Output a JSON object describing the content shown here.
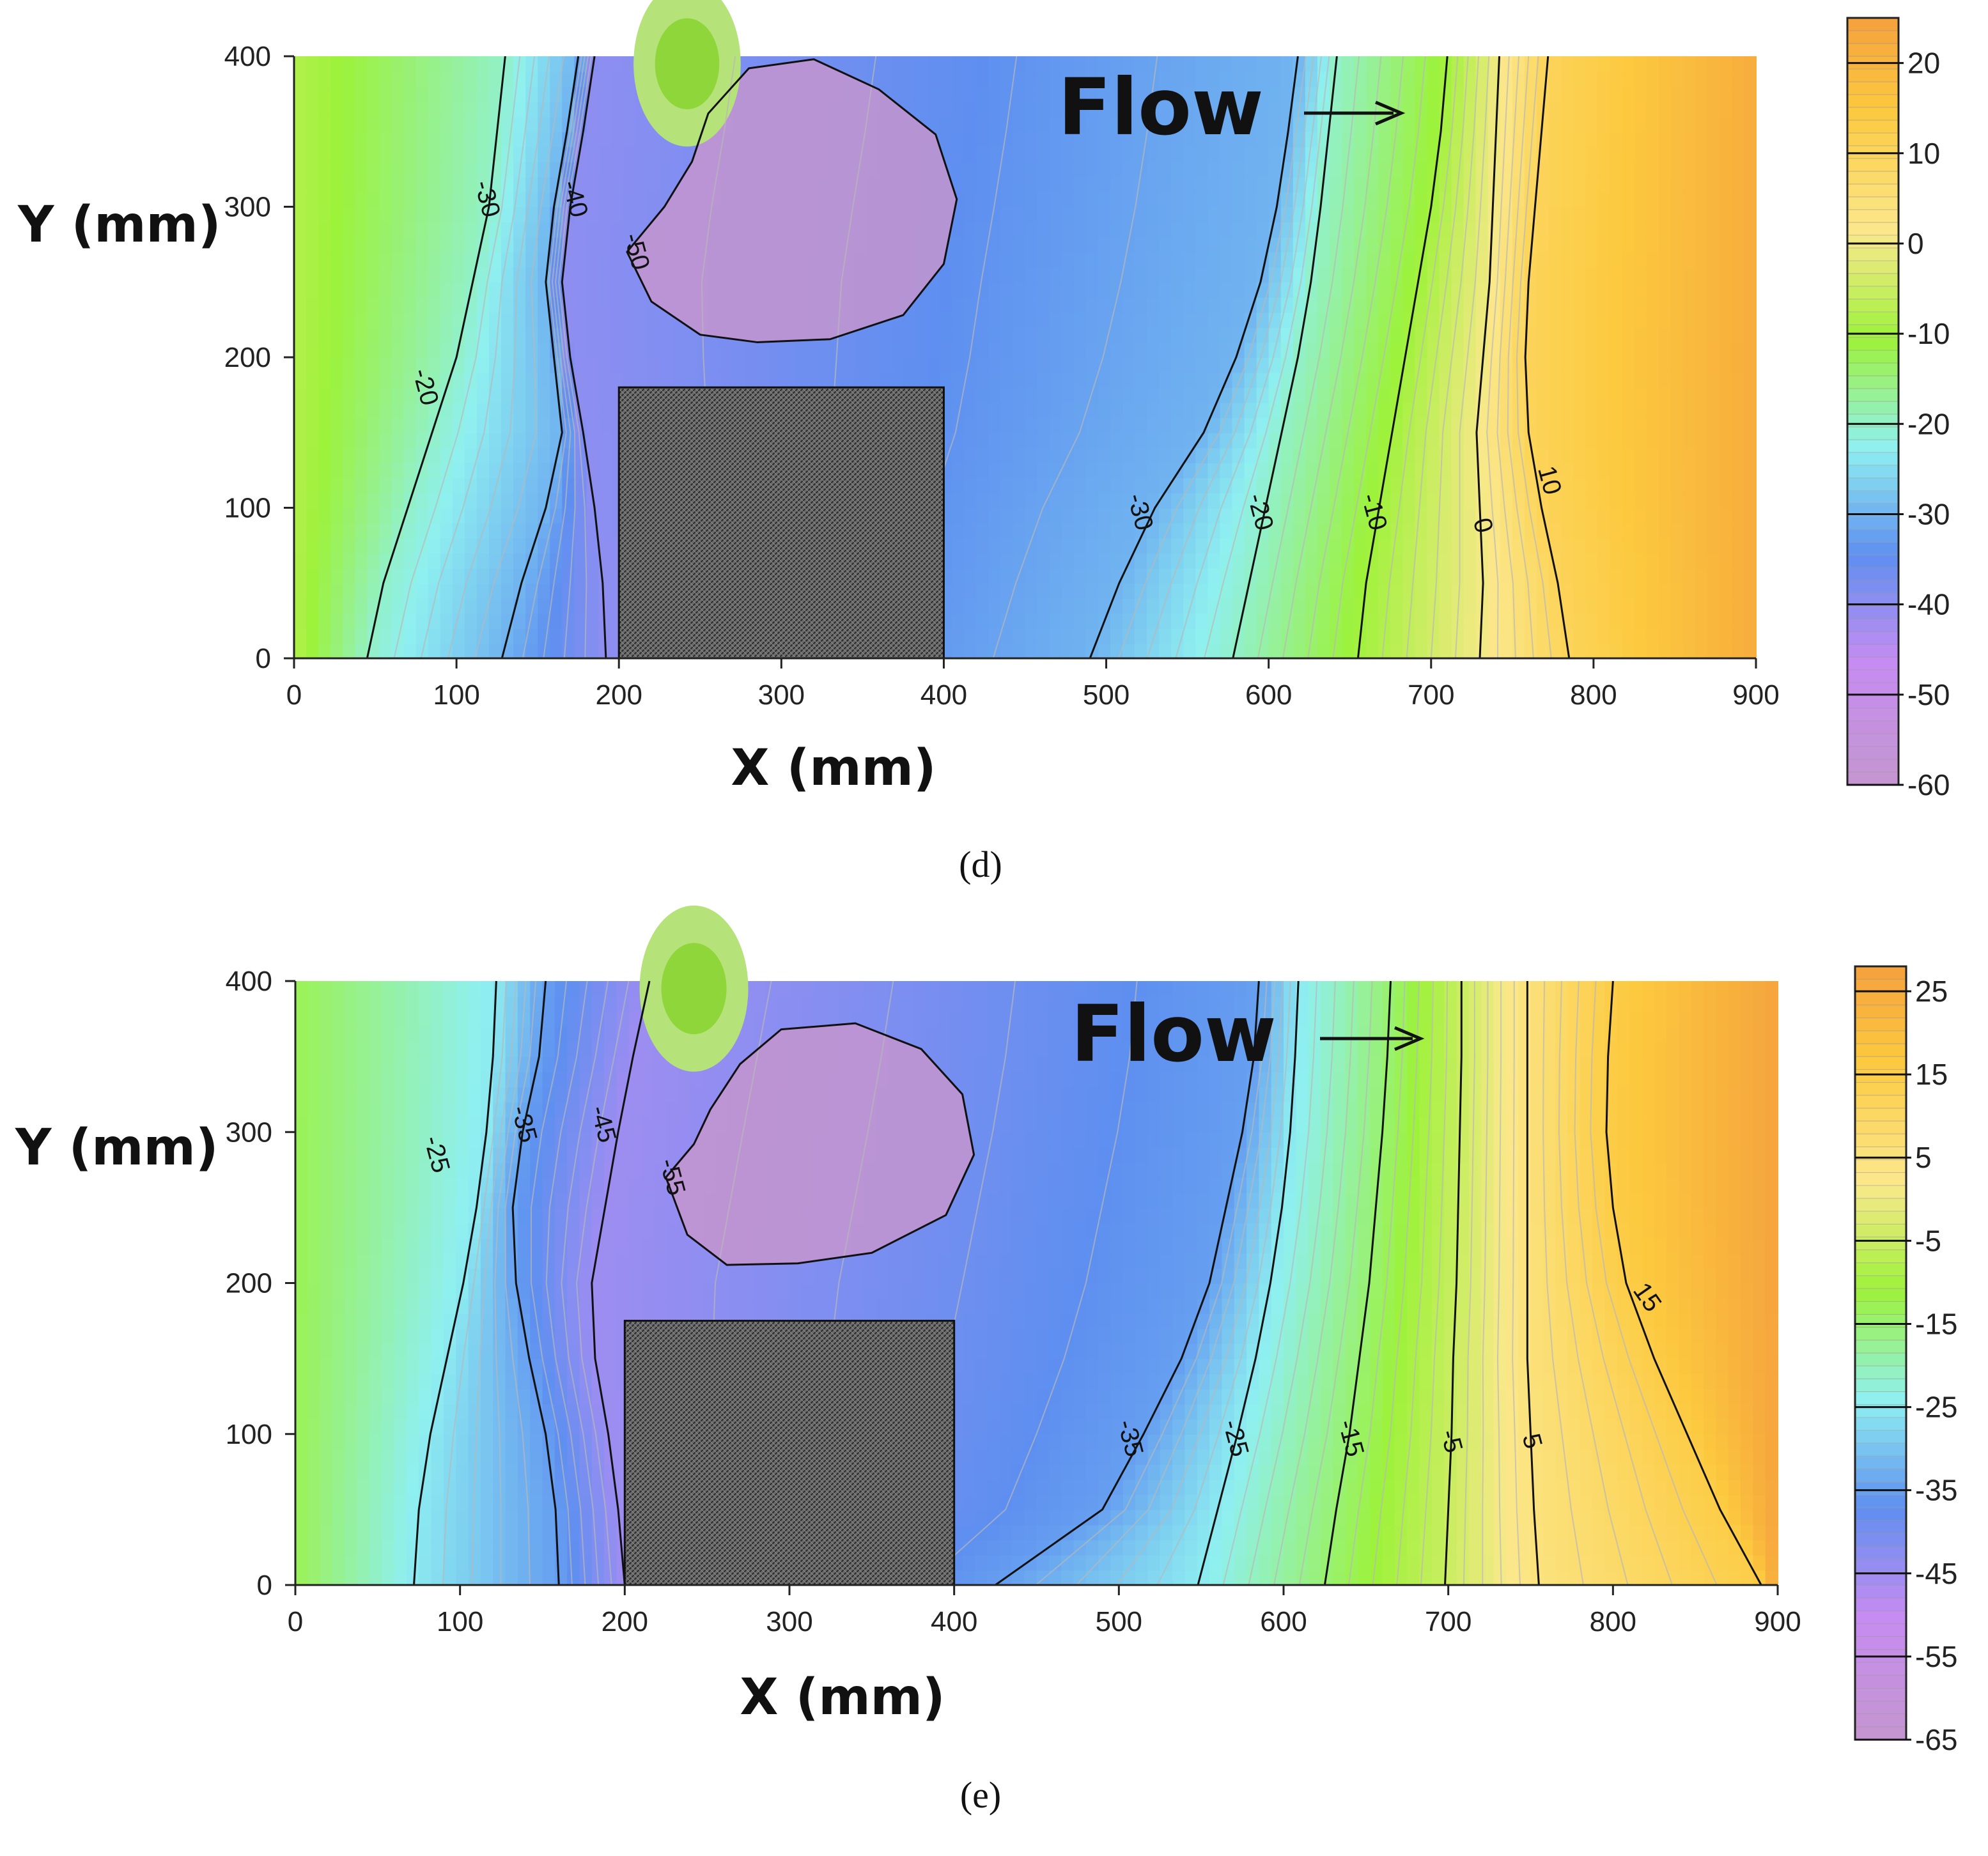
{
  "chart_data": [
    {
      "type": "contour",
      "panel_label": "d",
      "xlabel": "X (mm)",
      "ylabel": "Y (mm)",
      "xlim": [
        0,
        900
      ],
      "ylim": [
        0,
        400
      ],
      "x_ticks": [
        "0",
        "100",
        "200",
        "300",
        "400",
        "500",
        "600",
        "700",
        "800",
        "900"
      ],
      "y_ticks": [
        "0",
        "100",
        "200",
        "300",
        "400"
      ],
      "flow_annotation": "Flow",
      "obstacle": {
        "x": [
          200,
          400
        ],
        "y": [
          0,
          180
        ]
      },
      "contour_levels": [
        {
          "value": -20,
          "label": "-20",
          "x": [
            45,
            55,
            70,
            85,
            100,
            110,
            120,
            125,
            130
          ],
          "y": [
            0,
            50,
            100,
            150,
            200,
            250,
            300,
            350,
            400
          ],
          "label_at": [
            80,
            180
          ]
        },
        {
          "value": -30,
          "label": "-30",
          "x": [
            128,
            140,
            155,
            165,
            160,
            155,
            160,
            168,
            175
          ],
          "y": [
            0,
            50,
            100,
            150,
            200,
            250,
            300,
            350,
            400
          ],
          "label_at": [
            118,
            305
          ]
        },
        {
          "value": -40,
          "label": "-40",
          "x": [
            192,
            190,
            185,
            178,
            170,
            165,
            170,
            178,
            185
          ],
          "y": [
            0,
            50,
            100,
            150,
            200,
            250,
            300,
            350,
            400
          ],
          "label_at": [
            172,
            305
          ]
        },
        {
          "value": -50,
          "label": "-50",
          "x": [
            205,
            220,
            250,
            285,
            330,
            375,
            400,
            408,
            395,
            360,
            320,
            280,
            255,
            245,
            228
          ],
          "y": [
            270,
            237,
            215,
            210,
            212,
            228,
            262,
            305,
            348,
            378,
            398,
            392,
            362,
            330,
            300
          ],
          "label_at": [
            210,
            270
          ]
        },
        {
          "value": -30,
          "label": "-30",
          "x": [
            490,
            508,
            530,
            560,
            580,
            595,
            605,
            612,
            618
          ],
          "y": [
            0,
            50,
            100,
            150,
            200,
            250,
            300,
            350,
            400
          ],
          "label_at": [
            520,
            97
          ]
        },
        {
          "value": -20,
          "label": "-20",
          "x": [
            578,
            588,
            598,
            608,
            618,
            626,
            632,
            637,
            642
          ],
          "y": [
            0,
            50,
            100,
            150,
            200,
            250,
            300,
            350,
            400
          ],
          "label_at": [
            594,
            97
          ]
        },
        {
          "value": -10,
          "label": "-10",
          "x": [
            655,
            660,
            668,
            676,
            684,
            692,
            700,
            706,
            710
          ],
          "y": [
            0,
            50,
            100,
            150,
            200,
            250,
            300,
            350,
            400
          ],
          "label_at": [
            664,
            97
          ]
        },
        {
          "value": 0,
          "label": "0",
          "x": [
            730,
            732,
            730,
            728,
            732,
            736,
            738,
            740,
            742
          ],
          "y": [
            0,
            50,
            100,
            150,
            200,
            250,
            300,
            350,
            400
          ],
          "label_at": [
            731,
            88
          ]
        },
        {
          "value": 10,
          "label": "10",
          "x": [
            785,
            778,
            768,
            760,
            758,
            760,
            764,
            768,
            772
          ],
          "y": [
            0,
            50,
            100,
            150,
            200,
            250,
            300,
            350,
            400
          ],
          "label_at": [
            772,
            118
          ]
        }
      ],
      "colorbar": {
        "vmin": -60,
        "vmax": 25,
        "tick_values": [
          20,
          10,
          0,
          -10,
          -20,
          -30,
          -40,
          -50,
          -60
        ],
        "tick_labels": [
          "20",
          "10",
          "0",
          "-10",
          "-20",
          "-30",
          "-40",
          "-50",
          "-60"
        ]
      }
    },
    {
      "type": "contour",
      "panel_label": "e",
      "xlabel": "X (mm)",
      "ylabel": "Y (mm)",
      "xlim": [
        0,
        900
      ],
      "ylim": [
        0,
        400
      ],
      "x_ticks": [
        "0",
        "100",
        "200",
        "300",
        "400",
        "500",
        "600",
        "700",
        "800",
        "900"
      ],
      "y_ticks": [
        "0",
        "100",
        "200",
        "300",
        "400"
      ],
      "flow_annotation": "Flow",
      "obstacle": {
        "x": [
          200,
          400
        ],
        "y": [
          0,
          175
        ]
      },
      "contour_levels": [
        {
          "value": -25,
          "label": "-25",
          "x": [
            72,
            75,
            82,
            92,
            102,
            110,
            116,
            120,
            122
          ],
          "y": [
            0,
            50,
            100,
            150,
            200,
            250,
            300,
            350,
            400
          ],
          "label_at": [
            85,
            285
          ]
        },
        {
          "value": -35,
          "label": "-35",
          "x": [
            160,
            158,
            152,
            142,
            134,
            132,
            138,
            148,
            152
          ],
          "y": [
            0,
            50,
            100,
            150,
            200,
            250,
            300,
            350,
            400
          ],
          "label_at": [
            138,
            305
          ]
        },
        {
          "value": -45,
          "label": "-45",
          "x": [
            200,
            196,
            190,
            182,
            180,
            188,
            196,
            205,
            215
          ],
          "y": [
            0,
            50,
            100,
            150,
            200,
            250,
            300,
            350,
            400
          ],
          "label_at": [
            186,
            305
          ]
        },
        {
          "value": -55,
          "label": "-55",
          "x": [
            225,
            238,
            262,
            305,
            350,
            395,
            412,
            405,
            380,
            340,
            295,
            270,
            252,
            242
          ],
          "y": [
            270,
            232,
            212,
            213,
            220,
            245,
            285,
            325,
            355,
            372,
            368,
            345,
            315,
            292
          ],
          "label_at": [
            228,
            270
          ]
        },
        {
          "value": -35,
          "label": "-35",
          "x": [
            425,
            490,
            515,
            538,
            555,
            565,
            575,
            582,
            585
          ],
          "y": [
            0,
            50,
            100,
            150,
            200,
            250,
            300,
            350,
            400
          ],
          "label_at": [
            506,
            97
          ]
        },
        {
          "value": -25,
          "label": "-25",
          "x": [
            548,
            560,
            572,
            583,
            592,
            599,
            604,
            607,
            609
          ],
          "y": [
            0,
            50,
            100,
            150,
            200,
            250,
            300,
            350,
            400
          ],
          "label_at": [
            570,
            97
          ]
        },
        {
          "value": -15,
          "label": "-15",
          "x": [
            625,
            632,
            640,
            646,
            652,
            656,
            660,
            663,
            665
          ],
          "y": [
            0,
            50,
            100,
            150,
            200,
            250,
            300,
            350,
            400
          ],
          "label_at": [
            640,
            97
          ]
        },
        {
          "value": -5,
          "label": "-5",
          "x": [
            698,
            700,
            702,
            703,
            705,
            706,
            707,
            708,
            708
          ],
          "y": [
            0,
            50,
            100,
            150,
            200,
            250,
            300,
            350,
            400
          ],
          "label_at": [
            701,
            95
          ]
        },
        {
          "value": 5,
          "label": "5",
          "x": [
            755,
            752,
            750,
            748,
            748,
            748,
            748,
            748,
            748
          ],
          "y": [
            0,
            50,
            100,
            150,
            200,
            250,
            300,
            350,
            400
          ],
          "label_at": [
            750,
            95
          ]
        },
        {
          "value": 15,
          "label": "15",
          "x": [
            890,
            865,
            845,
            825,
            808,
            800,
            796,
            797,
            800
          ],
          "y": [
            0,
            50,
            100,
            150,
            200,
            250,
            300,
            350,
            400
          ],
          "label_at": [
            820,
            190
          ]
        }
      ],
      "colorbar": {
        "vmin": -65,
        "vmax": 28,
        "tick_values": [
          25,
          15,
          5,
          -5,
          -15,
          -25,
          -35,
          -45,
          -55,
          -65
        ],
        "tick_labels": [
          "25",
          "15",
          "5",
          "-5",
          "-15",
          "-25",
          "-35",
          "-45",
          "-55",
          "-65"
        ]
      }
    }
  ],
  "captions": {
    "d": "(d)",
    "e": "(e)"
  },
  "colors": {
    "orange": "#f5a13d",
    "yellow": "#fbe88c",
    "lime": "#9df23a",
    "cyan": "#8ff0f0",
    "blue": "#5e8ff0",
    "violet": "#c78cf2",
    "mauve": "#c495cf",
    "obstacle": "#595959",
    "line": "#111111"
  }
}
